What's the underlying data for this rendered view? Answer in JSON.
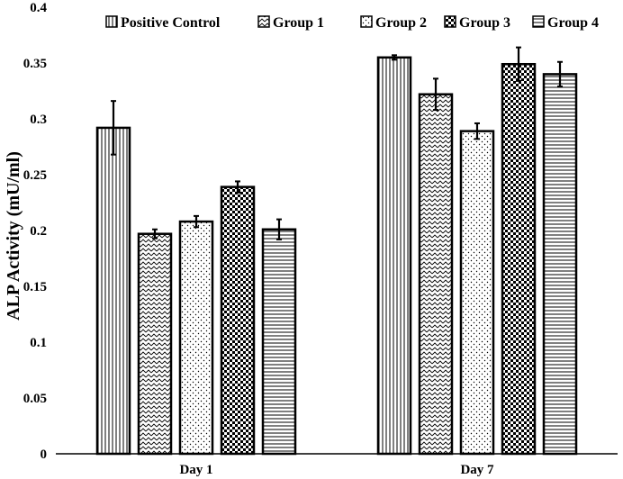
{
  "chart_data": {
    "type": "bar",
    "title": "",
    "xlabel": "",
    "ylabel": "ALP Activity (mU/ml)",
    "ylim": [
      0,
      0.4
    ],
    "yticks": [
      "0",
      "0.05",
      "0.1",
      "0.15",
      "0.2",
      "0.25",
      "0.3",
      "0.35",
      "0.4"
    ],
    "categories": [
      "Day 1",
      "Day 7"
    ],
    "series": [
      {
        "name": "Positive Control",
        "pattern": "vertical-lines",
        "values": [
          0.292,
          0.355
        ],
        "errors": [
          0.024,
          0.002
        ]
      },
      {
        "name": "Group 1",
        "pattern": "zigzag",
        "values": [
          0.197,
          0.322
        ],
        "errors": [
          0.004,
          0.014
        ]
      },
      {
        "name": "Group 2",
        "pattern": "dots",
        "values": [
          0.208,
          0.289
        ],
        "errors": [
          0.005,
          0.007
        ]
      },
      {
        "name": "Group 3",
        "pattern": "checker",
        "values": [
          0.239,
          0.349
        ],
        "errors": [
          0.005,
          0.015
        ]
      },
      {
        "name": "Group 4",
        "pattern": "horizontal-lines",
        "values": [
          0.201,
          0.34
        ],
        "errors": [
          0.009,
          0.011
        ]
      }
    ],
    "legend_position": "top",
    "grid": false
  }
}
